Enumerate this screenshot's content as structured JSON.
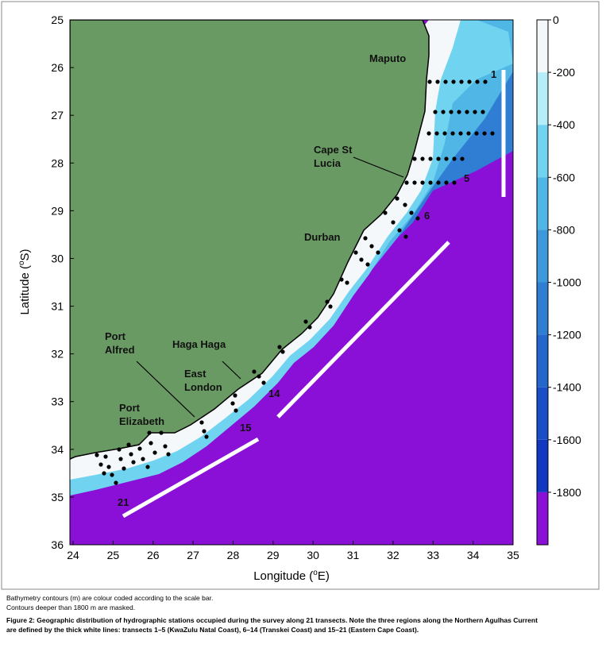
{
  "map": {
    "xlabel": {
      "text": "Longitude (",
      "sup": "o",
      "tail": "E)"
    },
    "ylabel": {
      "text": "Latitude (",
      "sup": "o",
      "tail": "S)"
    },
    "xlim": [
      24,
      35
    ],
    "ylim": [
      25,
      36
    ],
    "xticks": [
      24,
      25,
      26,
      27,
      28,
      29,
      30,
      31,
      32,
      33,
      34,
      35
    ],
    "yticks": [
      25,
      26,
      27,
      28,
      29,
      30,
      31,
      32,
      33,
      34,
      35,
      36
    ],
    "colorbar": {
      "clim": [
        0,
        -2000
      ],
      "ticks": [
        0,
        -200,
        -400,
        -600,
        -800,
        -1000,
        -1200,
        -1400,
        -1600,
        -1800
      ],
      "colors": [
        "#f4f8fb",
        "#b5eef8",
        "#70d4f0",
        "#4fb6e6",
        "#3d98dc",
        "#2f7ed4",
        "#2466cc",
        "#1a4ec8",
        "#1237c0",
        "#8a10d8"
      ]
    },
    "places": [
      [
        "Maputo"
      ],
      [
        "Cape St",
        "Lucia"
      ],
      [
        "Durban"
      ],
      [
        "Port",
        "Alfred"
      ],
      [
        "Haga Haga"
      ],
      [
        "East",
        "London"
      ],
      [
        "Port",
        "Elizabeth"
      ]
    ],
    "transect_labels": [
      "1",
      "5",
      "6",
      "14",
      "15",
      "21"
    ]
  },
  "caption": {
    "notes": [
      "Bathymetry contours (m) are colour coded according to the scale bar.",
      "Contours deeper than 1800 m are masked."
    ],
    "figure": [
      "Figure 2: Geographic distribution of hydrographic stations occupied during the survey along 21 transects. Note the three regions along the Northern Agulhas Current",
      "are defined by the thick white lines: transects 1–5 (KwaZulu Natal Coast), 6–14 (Transkei Coast) and 15–21 (Eastern Cape Coast)."
    ]
  }
}
